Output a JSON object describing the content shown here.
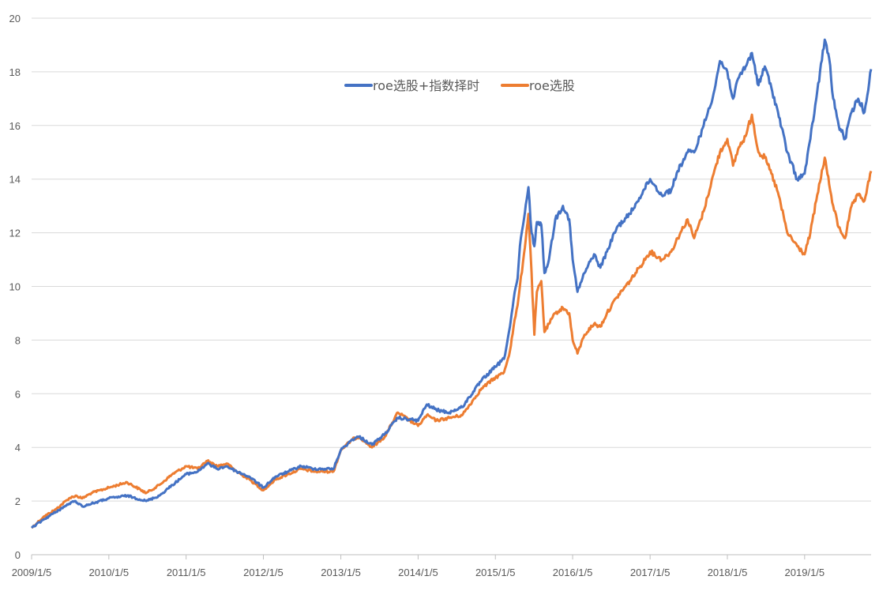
{
  "chart_data": {
    "type": "line",
    "title": "",
    "xlabel": "",
    "ylabel": "",
    "x_tick_labels": [
      "2009/1/5",
      "2010/1/5",
      "2011/1/5",
      "2012/1/5",
      "2013/1/5",
      "2014/1/5",
      "2015/1/5",
      "2016/1/5",
      "2017/1/5",
      "2018/1/5",
      "2019/1/5"
    ],
    "y_ticks": [
      0,
      2,
      4,
      6,
      8,
      10,
      12,
      14,
      16,
      18,
      20
    ],
    "ylim": [
      0,
      20
    ],
    "xlim": [
      "2009/1/5",
      "2019/11/15"
    ],
    "grid": "horizontal",
    "legend_position": "top-center",
    "series": [
      {
        "name": "roe选股+指数择时",
        "color": "#4472C4",
        "points": [
          [
            "2009/1/5",
            1.0
          ],
          [
            "2009/3/1",
            1.3
          ],
          [
            "2009/5/1",
            1.6
          ],
          [
            "2009/7/1",
            1.9
          ],
          [
            "2009/8/1",
            2.0
          ],
          [
            "2009/9/1",
            1.8
          ],
          [
            "2009/10/15",
            1.9
          ],
          [
            "2010/1/5",
            2.1
          ],
          [
            "2010/4/1",
            2.2
          ],
          [
            "2010/7/1",
            2.0
          ],
          [
            "2010/9/1",
            2.2
          ],
          [
            "2010/11/1",
            2.6
          ],
          [
            "2011/1/5",
            3.0
          ],
          [
            "2011/3/1",
            3.1
          ],
          [
            "2011/4/15",
            3.4
          ],
          [
            "2011/6/1",
            3.2
          ],
          [
            "2011/7/15",
            3.3
          ],
          [
            "2011/9/1",
            3.1
          ],
          [
            "2011/11/1",
            2.9
          ],
          [
            "2012/1/5",
            2.5
          ],
          [
            "2012/3/1",
            2.9
          ],
          [
            "2012/5/1",
            3.1
          ],
          [
            "2012/7/1",
            3.3
          ],
          [
            "2012/9/1",
            3.2
          ],
          [
            "2012/12/1",
            3.2
          ],
          [
            "2013/1/5",
            3.9
          ],
          [
            "2013/3/1",
            4.3
          ],
          [
            "2013/4/1",
            4.4
          ],
          [
            "2013/6/1",
            4.1
          ],
          [
            "2013/8/1",
            4.5
          ],
          [
            "2013/10/1",
            5.1
          ],
          [
            "2014/1/5",
            5.0
          ],
          [
            "2014/2/15",
            5.6
          ],
          [
            "2014/4/1",
            5.4
          ],
          [
            "2014/6/1",
            5.3
          ],
          [
            "2014/8/1",
            5.5
          ],
          [
            "2014/11/1",
            6.5
          ],
          [
            "2015/1/5",
            7.0
          ],
          [
            "2015/2/15",
            7.3
          ],
          [
            "2015/3/15",
            8.5
          ],
          [
            "2015/4/1",
            9.5
          ],
          [
            "2015/4/20",
            10.3
          ],
          [
            "2015/5/1",
            11.5
          ],
          [
            "2015/5/20",
            12.5
          ],
          [
            "2015/6/10",
            13.7
          ],
          [
            "2015/6/25",
            12.0
          ],
          [
            "2015/7/8",
            11.5
          ],
          [
            "2015/7/20",
            12.4
          ],
          [
            "2015/8/10",
            12.3
          ],
          [
            "2015/8/25",
            10.5
          ],
          [
            "2015/9/15",
            11.0
          ],
          [
            "2015/10/15",
            12.5
          ],
          [
            "2015/11/20",
            13.0
          ],
          [
            "2015/12/20",
            12.5
          ],
          [
            "2016/1/5",
            11.0
          ],
          [
            "2016/1/28",
            9.8
          ],
          [
            "2016/3/1",
            10.5
          ],
          [
            "2016/4/15",
            11.2
          ],
          [
            "2016/5/15",
            10.7
          ],
          [
            "2016/6/15",
            11.3
          ],
          [
            "2016/8/1",
            12.2
          ],
          [
            "2016/10/1",
            12.7
          ],
          [
            "2016/11/15",
            13.3
          ],
          [
            "2017/1/5",
            14.0
          ],
          [
            "2017/3/1",
            13.4
          ],
          [
            "2017/4/15",
            13.6
          ],
          [
            "2017/5/15",
            14.3
          ],
          [
            "2017/7/1",
            15.0
          ],
          [
            "2017/8/1",
            15.0
          ],
          [
            "2017/9/15",
            16.0
          ],
          [
            "2017/11/1",
            17.2
          ],
          [
            "2017/12/1",
            18.4
          ],
          [
            "2018/1/5",
            18.0
          ],
          [
            "2018/2/1",
            17.0
          ],
          [
            "2018/3/1",
            17.8
          ],
          [
            "2018/4/1",
            18.2
          ],
          [
            "2018/5/1",
            18.7
          ],
          [
            "2018/6/1",
            17.5
          ],
          [
            "2018/7/1",
            18.2
          ],
          [
            "2018/8/1",
            17.4
          ],
          [
            "2018/9/1",
            16.5
          ],
          [
            "2018/10/15",
            15.0
          ],
          [
            "2018/12/1",
            14.0
          ],
          [
            "2019/1/5",
            14.2
          ],
          [
            "2019/2/1",
            15.5
          ],
          [
            "2019/3/1",
            17.0
          ],
          [
            "2019/4/10",
            19.2
          ],
          [
            "2019/5/1",
            18.5
          ],
          [
            "2019/5/20",
            17.0
          ],
          [
            "2019/6/15",
            16.0
          ],
          [
            "2019/7/15",
            15.5
          ],
          [
            "2019/8/15",
            16.5
          ],
          [
            "2019/9/15",
            17.0
          ],
          [
            "2019/10/15",
            16.5
          ],
          [
            "2019/11/15",
            18.1
          ]
        ]
      },
      {
        "name": "roe选股",
        "color": "#ED7D31",
        "points": [
          [
            "2009/1/5",
            1.0
          ],
          [
            "2009/3/1",
            1.4
          ],
          [
            "2009/5/1",
            1.7
          ],
          [
            "2009/7/1",
            2.1
          ],
          [
            "2009/8/1",
            2.2
          ],
          [
            "2009/9/1",
            2.1
          ],
          [
            "2009/10/15",
            2.3
          ],
          [
            "2010/1/5",
            2.5
          ],
          [
            "2010/4/1",
            2.7
          ],
          [
            "2010/7/1",
            2.3
          ],
          [
            "2010/9/1",
            2.6
          ],
          [
            "2010/11/1",
            3.0
          ],
          [
            "2011/1/5",
            3.3
          ],
          [
            "2011/3/1",
            3.2
          ],
          [
            "2011/4/15",
            3.5
          ],
          [
            "2011/6/1",
            3.3
          ],
          [
            "2011/7/15",
            3.4
          ],
          [
            "2011/9/1",
            3.1
          ],
          [
            "2011/11/1",
            2.8
          ],
          [
            "2012/1/5",
            2.4
          ],
          [
            "2012/3/1",
            2.8
          ],
          [
            "2012/5/1",
            3.0
          ],
          [
            "2012/7/1",
            3.2
          ],
          [
            "2012/9/1",
            3.1
          ],
          [
            "2012/12/1",
            3.1
          ],
          [
            "2013/1/5",
            3.9
          ],
          [
            "2013/3/1",
            4.3
          ],
          [
            "2013/4/1",
            4.4
          ],
          [
            "2013/6/1",
            4.0
          ],
          [
            "2013/8/1",
            4.4
          ],
          [
            "2013/10/1",
            5.3
          ],
          [
            "2014/1/5",
            4.8
          ],
          [
            "2014/2/15",
            5.2
          ],
          [
            "2014/4/1",
            5.0
          ],
          [
            "2014/6/1",
            5.1
          ],
          [
            "2014/8/1",
            5.2
          ],
          [
            "2014/11/1",
            6.2
          ],
          [
            "2015/1/5",
            6.6
          ],
          [
            "2015/2/15",
            6.8
          ],
          [
            "2015/3/15",
            7.6
          ],
          [
            "2015/4/1",
            8.5
          ],
          [
            "2015/4/20",
            9.3
          ],
          [
            "2015/5/1",
            10.0
          ],
          [
            "2015/5/20",
            11.2
          ],
          [
            "2015/6/10",
            12.7
          ],
          [
            "2015/6/25",
            10.5
          ],
          [
            "2015/7/8",
            8.2
          ],
          [
            "2015/7/20",
            9.8
          ],
          [
            "2015/8/10",
            10.2
          ],
          [
            "2015/8/25",
            8.3
          ],
          [
            "2015/9/15",
            8.6
          ],
          [
            "2015/10/15",
            9.0
          ],
          [
            "2015/11/20",
            9.2
          ],
          [
            "2015/12/20",
            9.0
          ],
          [
            "2016/1/5",
            8.0
          ],
          [
            "2016/1/28",
            7.5
          ],
          [
            "2016/3/1",
            8.2
          ],
          [
            "2016/4/15",
            8.6
          ],
          [
            "2016/5/15",
            8.5
          ],
          [
            "2016/6/15",
            9.0
          ],
          [
            "2016/8/1",
            9.6
          ],
          [
            "2016/10/1",
            10.2
          ],
          [
            "2016/11/15",
            10.7
          ],
          [
            "2017/1/5",
            11.3
          ],
          [
            "2017/3/1",
            11.0
          ],
          [
            "2017/4/15",
            11.3
          ],
          [
            "2017/5/15",
            11.8
          ],
          [
            "2017/7/1",
            12.5
          ],
          [
            "2017/8/1",
            11.8
          ],
          [
            "2017/9/15",
            12.8
          ],
          [
            "2017/11/1",
            14.2
          ],
          [
            "2017/12/1",
            15.0
          ],
          [
            "2018/1/5",
            15.5
          ],
          [
            "2018/2/1",
            14.5
          ],
          [
            "2018/3/1",
            15.2
          ],
          [
            "2018/4/1",
            15.6
          ],
          [
            "2018/5/1",
            16.4
          ],
          [
            "2018/6/1",
            15.0
          ],
          [
            "2018/7/1",
            14.8
          ],
          [
            "2018/8/1",
            14.2
          ],
          [
            "2018/9/1",
            13.5
          ],
          [
            "2018/10/15",
            12.0
          ],
          [
            "2018/12/1",
            11.5
          ],
          [
            "2019/1/5",
            11.2
          ],
          [
            "2019/2/1",
            12.0
          ],
          [
            "2019/3/1",
            13.2
          ],
          [
            "2019/4/10",
            14.8
          ],
          [
            "2019/5/1",
            13.8
          ],
          [
            "2019/5/20",
            13.0
          ],
          [
            "2019/6/15",
            12.2
          ],
          [
            "2019/7/15",
            11.8
          ],
          [
            "2019/8/15",
            13.0
          ],
          [
            "2019/9/15",
            13.4
          ],
          [
            "2019/10/15",
            13.2
          ],
          [
            "2019/11/15",
            14.3
          ]
        ]
      }
    ]
  }
}
